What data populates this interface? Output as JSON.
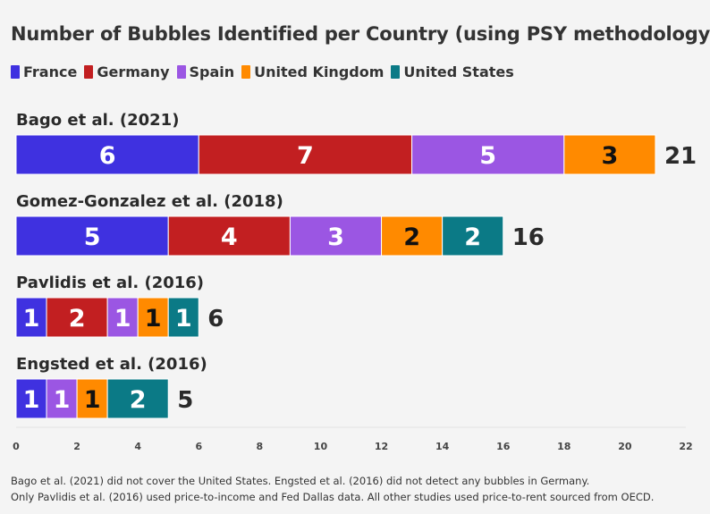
{
  "title": "Number of Bubbles Identified per Country (using PSY methodology)",
  "notes": [
    "Bago et al. (2021) did not cover the United States. Engsted et al. (2016) did not detect any bubbles in Germany.",
    "Only Pavlidis et al. (2016) used price-to-income and Fed Dallas data. All other studies used price-to-rent sourced from OECD."
  ],
  "chart_data": {
    "type": "bar",
    "orientation": "horizontal",
    "stacked": true,
    "series": [
      {
        "name": "France",
        "color": "#3f31e0",
        "label_color": "#ffffff"
      },
      {
        "name": "Germany",
        "color": "#c21f21",
        "label_color": "#ffffff"
      },
      {
        "name": "Spain",
        "color": "#9b56e3",
        "label_color": "#ffffff"
      },
      {
        "name": "United Kingdom",
        "color": "#ff8a00",
        "label_color": "#111111"
      },
      {
        "name": "United States",
        "color": "#0b7a86",
        "label_color": "#ffffff"
      }
    ],
    "rows": [
      {
        "label": "Bago et al. (2021)",
        "values": [
          6,
          7,
          5,
          3,
          0
        ],
        "total": 21
      },
      {
        "label": "Gomez-Gonzalez et al. (2018)",
        "values": [
          5,
          4,
          3,
          2,
          2
        ],
        "total": 16
      },
      {
        "label": "Pavlidis et al. (2016)",
        "values": [
          1,
          2,
          1,
          1,
          1
        ],
        "total": 6
      },
      {
        "label": "Engsted et al. (2016)",
        "values": [
          1,
          0,
          1,
          1,
          2
        ],
        "total": 5
      }
    ],
    "xlim": [
      0,
      22
    ],
    "xticks": [
      0,
      2,
      4,
      6,
      8,
      10,
      12,
      14,
      16,
      18,
      20,
      22
    ],
    "grid": false,
    "legend_position": "top-left"
  }
}
